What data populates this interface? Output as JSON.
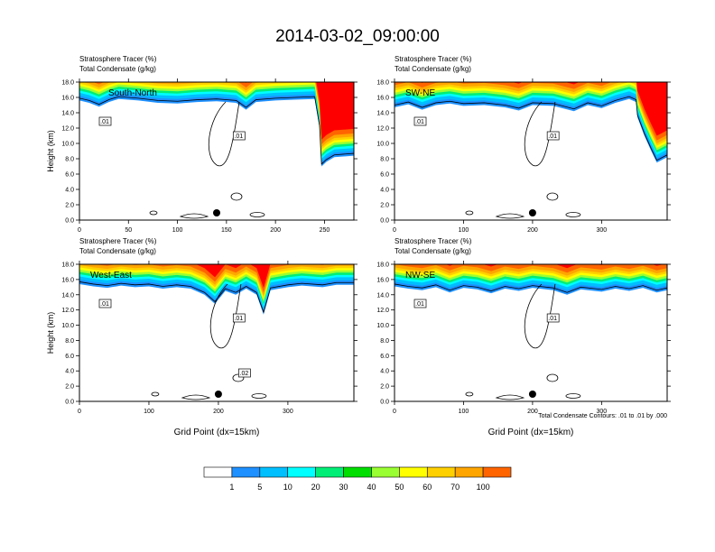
{
  "figure": {
    "title": "2014-03-02_09:00:00",
    "contour_note": "Total Condensate Contours: .01 to .01 by .000",
    "x_axis_label": "Grid Point (dx=15km)"
  },
  "colorbar": {
    "levels": [
      "1",
      "5",
      "10",
      "20",
      "30",
      "40",
      "50",
      "60",
      "70",
      "100"
    ],
    "colors": [
      "#ffffff",
      "#1e90ff",
      "#00bfff",
      "#00ffff",
      "#00ee76",
      "#00dd00",
      "#9aff32",
      "#ffff00",
      "#ffd000",
      "#ffa500",
      "#ff6400",
      "#ff0000"
    ]
  },
  "chart_data": [
    {
      "type": "heatmap",
      "panel": "South-North",
      "title_line1": "Stratosphere Tracer   (%)",
      "title_line2": "Total Condensate   (g/kg)",
      "ylabel": "Height (km)",
      "xlabel": "",
      "xlim": [
        0,
        280
      ],
      "ylim": [
        0,
        18
      ],
      "xticks": [
        "0",
        "50",
        "100",
        "150",
        "200",
        "250"
      ],
      "yticks": [
        "0.0",
        "2.0",
        "4.0",
        "6.0",
        "8.0",
        "10.0",
        "12.0",
        "14.0",
        "16.0",
        "18.0"
      ],
      "tracer_base_km": [
        [
          0,
          15.6
        ],
        [
          10,
          15.3
        ],
        [
          20,
          14.8
        ],
        [
          30,
          15.4
        ],
        [
          40,
          15.8
        ],
        [
          60,
          15.6
        ],
        [
          80,
          15.3
        ],
        [
          100,
          15.2
        ],
        [
          120,
          15.4
        ],
        [
          140,
          15.5
        ],
        [
          160,
          15.3
        ],
        [
          170,
          14.4
        ],
        [
          180,
          15.4
        ],
        [
          200,
          15.6
        ],
        [
          220,
          15.7
        ],
        [
          240,
          15.8
        ],
        [
          245,
          12.0
        ],
        [
          247,
          7.0
        ],
        [
          252,
          7.6
        ],
        [
          260,
          8.2
        ],
        [
          280,
          8.4
        ]
      ],
      "contour_labels": [
        ".01",
        ".01"
      ],
      "marker_x": 140
    },
    {
      "type": "heatmap",
      "panel": "SW-NE",
      "title_line1": "Stratosphere Tracer   (%)",
      "title_line2": "Total Condensate   (g/kg)",
      "ylabel": "",
      "xlabel": "",
      "xlim": [
        0,
        395
      ],
      "ylim": [
        0,
        18
      ],
      "xticks": [
        "0",
        "100",
        "200",
        "300"
      ],
      "yticks": [
        "0.0",
        "2.0",
        "4.0",
        "6.0",
        "8.0",
        "10.0",
        "12.0",
        "14.0",
        "16.0",
        "18.0"
      ],
      "tracer_base_km": [
        [
          0,
          14.7
        ],
        [
          20,
          15.1
        ],
        [
          40,
          14.4
        ],
        [
          60,
          15.0
        ],
        [
          80,
          15.2
        ],
        [
          100,
          14.9
        ],
        [
          130,
          15.0
        ],
        [
          160,
          14.7
        ],
        [
          180,
          14.3
        ],
        [
          200,
          15.0
        ],
        [
          230,
          14.9
        ],
        [
          260,
          14.2
        ],
        [
          280,
          15.0
        ],
        [
          300,
          14.6
        ],
        [
          320,
          15.3
        ],
        [
          340,
          15.8
        ],
        [
          350,
          15.4
        ],
        [
          352,
          13.4
        ],
        [
          362,
          11.0
        ],
        [
          372,
          9.0
        ],
        [
          380,
          7.5
        ],
        [
          395,
          8.2
        ]
      ],
      "contour_labels": [
        ".01",
        ".01"
      ],
      "marker_x": 200
    },
    {
      "type": "heatmap",
      "panel": "West-East",
      "title_line1": "Stratosphere Tracer   (%)",
      "title_line2": "Total Condensate   (g/kg)",
      "ylabel": "Height (km)",
      "xlabel": "Grid Point (dx=15km)",
      "xlim": [
        0,
        395
      ],
      "ylim": [
        0,
        18
      ],
      "xticks": [
        "0",
        "100",
        "200",
        "300"
      ],
      "yticks": [
        "0.0",
        "2.0",
        "4.0",
        "6.0",
        "8.0",
        "10.0",
        "12.0",
        "14.0",
        "16.0",
        "18.0"
      ],
      "tracer_base_km": [
        [
          0,
          15.4
        ],
        [
          20,
          15.1
        ],
        [
          40,
          14.9
        ],
        [
          60,
          15.2
        ],
        [
          80,
          15.0
        ],
        [
          100,
          15.1
        ],
        [
          120,
          14.8
        ],
        [
          140,
          15.0
        ],
        [
          160,
          14.8
        ],
        [
          180,
          14.0
        ],
        [
          195,
          12.8
        ],
        [
          210,
          14.5
        ],
        [
          225,
          14.0
        ],
        [
          240,
          14.8
        ],
        [
          255,
          14.0
        ],
        [
          265,
          11.4
        ],
        [
          275,
          14.6
        ],
        [
          300,
          15.0
        ],
        [
          320,
          15.2
        ],
        [
          350,
          15.0
        ],
        [
          370,
          15.3
        ],
        [
          395,
          15.3
        ]
      ],
      "contour_labels": [
        ".01",
        ".01",
        ".02"
      ],
      "marker_x": 200
    },
    {
      "type": "heatmap",
      "panel": "NW-SE",
      "title_line1": "Stratosphere Tracer   (%)",
      "title_line2": "Total Condensate   (g/kg)",
      "ylabel": "",
      "xlabel": "Grid Point (dx=15km)",
      "xlim": [
        0,
        395
      ],
      "ylim": [
        0,
        18
      ],
      "xticks": [
        "0",
        "100",
        "200",
        "300"
      ],
      "yticks": [
        "0.0",
        "2.0",
        "4.0",
        "6.0",
        "8.0",
        "10.0",
        "12.0",
        "14.0",
        "16.0",
        "18.0"
      ],
      "tracer_base_km": [
        [
          0,
          15.1
        ],
        [
          20,
          14.8
        ],
        [
          40,
          14.6
        ],
        [
          60,
          15.0
        ],
        [
          80,
          14.3
        ],
        [
          100,
          14.9
        ],
        [
          120,
          14.7
        ],
        [
          140,
          14.2
        ],
        [
          160,
          14.8
        ],
        [
          180,
          14.5
        ],
        [
          200,
          14.9
        ],
        [
          230,
          14.6
        ],
        [
          250,
          14.0
        ],
        [
          270,
          14.7
        ],
        [
          300,
          14.4
        ],
        [
          320,
          14.8
        ],
        [
          340,
          14.5
        ],
        [
          360,
          14.9
        ],
        [
          380,
          14.3
        ],
        [
          395,
          14.6
        ]
      ],
      "contour_labels": [
        ".01",
        ".01"
      ],
      "marker_x": 200
    }
  ]
}
